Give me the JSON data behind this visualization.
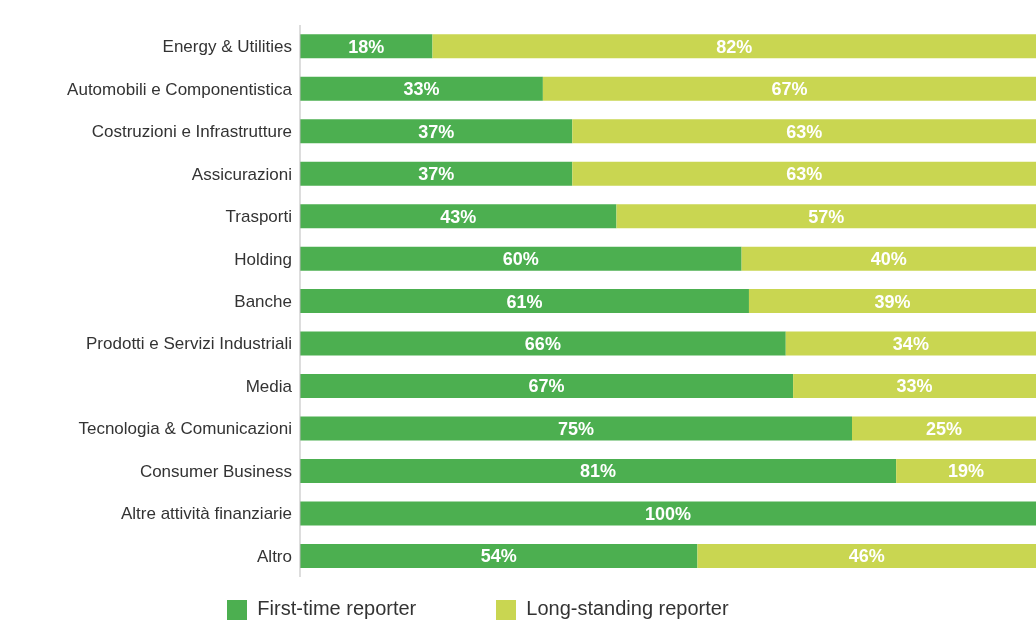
{
  "chart_data": {
    "type": "bar",
    "orientation": "horizontal",
    "stacked": true,
    "legend": "bottom",
    "grid": false,
    "categories": [
      "Energy & Utilities",
      "Automobili e Componentistica",
      "Costruzioni e Infrastrutture",
      "Assicurazioni",
      "Trasporti",
      "Holding",
      "Banche",
      "Prodotti e Servizi Industriali",
      "Media",
      "Tecnologia & Comunicazioni",
      "Consumer Business",
      "Altre attività finanziarie",
      "Altro"
    ],
    "series": [
      {
        "name": "First-time reporter",
        "color": "#4caf50",
        "values": [
          18,
          33,
          37,
          37,
          43,
          60,
          61,
          66,
          67,
          75,
          81,
          100,
          54
        ],
        "value_labels": [
          "18%",
          "33%",
          "37%",
          "37%",
          "43%",
          "60%",
          "61%",
          "66%",
          "67%",
          "75%",
          "81%",
          "100%",
          "54%"
        ]
      },
      {
        "name": "Long-standing reporter",
        "color": "#c9d651",
        "values": [
          82,
          67,
          63,
          63,
          57,
          40,
          39,
          34,
          33,
          25,
          19,
          null,
          46
        ],
        "value_labels": [
          "82%",
          "67%",
          "63%",
          "63%",
          "57%",
          "40%",
          "39%",
          "34%",
          "33%",
          "25%",
          "19%",
          null,
          "46%"
        ]
      }
    ]
  }
}
